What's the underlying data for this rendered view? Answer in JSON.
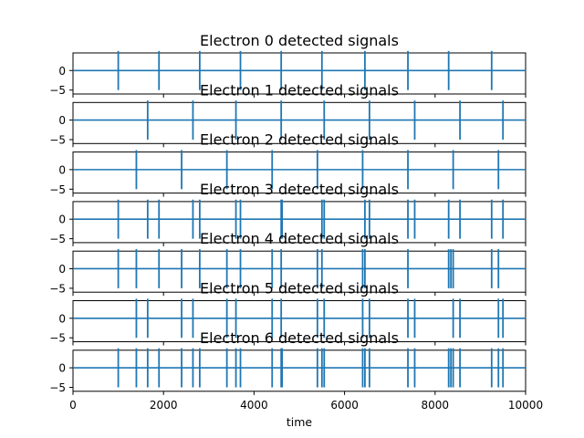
{
  "chart_data": [
    {
      "type": "line",
      "title": "Electron 0 detected signals",
      "xlim": [
        0,
        10000
      ],
      "ylim": [
        -6,
        4.5
      ],
      "yticks": [
        0,
        -5
      ],
      "x_range": [
        0,
        10000
      ],
      "baseline": 0,
      "spike_amplitude": 5,
      "spikes": [
        1000,
        1900,
        2800,
        3700,
        4600,
        5500,
        6450,
        7400,
        8300,
        9250
      ]
    },
    {
      "type": "line",
      "title": "Electron 1 detected signals",
      "xlim": [
        0,
        10000
      ],
      "ylim": [
        -6,
        4.5
      ],
      "yticks": [
        0,
        -5
      ],
      "x_range": [
        0,
        10000
      ],
      "baseline": 0,
      "spike_amplitude": 5,
      "spikes": [
        1650,
        2650,
        3600,
        4600,
        5550,
        6550,
        7550,
        8550,
        9500
      ]
    },
    {
      "type": "line",
      "title": "Electron 2 detected signals",
      "xlim": [
        0,
        10000
      ],
      "ylim": [
        -6,
        4.5
      ],
      "yticks": [
        0,
        -5
      ],
      "x_range": [
        0,
        10000
      ],
      "baseline": 0,
      "spike_amplitude": 5,
      "spikes": [
        1400,
        2400,
        3400,
        4400,
        5400,
        6400,
        7400,
        8400,
        9400
      ]
    },
    {
      "type": "line",
      "title": "Electron 3 detected signals",
      "xlim": [
        0,
        10000
      ],
      "ylim": [
        -6,
        4.5
      ],
      "yticks": [
        0,
        -5
      ],
      "x_range": [
        0,
        10000
      ],
      "baseline": 0,
      "spike_amplitude": 5,
      "spikes": [
        1000,
        1650,
        1900,
        2650,
        2800,
        3600,
        3700,
        4600,
        4620,
        5500,
        5550,
        6450,
        6550,
        7400,
        7550,
        8300,
        8550,
        9250,
        9500
      ]
    },
    {
      "type": "line",
      "title": "Electron 4 detected signals",
      "xlim": [
        0,
        10000
      ],
      "ylim": [
        -6,
        4.5
      ],
      "yticks": [
        0,
        -5
      ],
      "x_range": [
        0,
        10000
      ],
      "baseline": 0,
      "spike_amplitude": 5,
      "spikes": [
        1000,
        1400,
        1900,
        2400,
        2800,
        3400,
        3700,
        4400,
        4600,
        5400,
        5500,
        6400,
        6450,
        7400,
        8300,
        8350,
        8400,
        9250,
        9400
      ]
    },
    {
      "type": "line",
      "title": "Electron 5 detected signals",
      "xlim": [
        0,
        10000
      ],
      "ylim": [
        -6,
        4.5
      ],
      "yticks": [
        0,
        -5
      ],
      "x_range": [
        0,
        10000
      ],
      "baseline": 0,
      "spike_amplitude": 5,
      "spikes": [
        1400,
        1650,
        2400,
        2650,
        3400,
        3600,
        4400,
        4600,
        5400,
        5550,
        6400,
        6550,
        7400,
        7550,
        8400,
        8550,
        9400,
        9500
      ]
    },
    {
      "type": "line",
      "title": "Electron 6 detected signals",
      "xlim": [
        0,
        10000
      ],
      "ylim": [
        -6,
        4.5
      ],
      "yticks": [
        0,
        -5
      ],
      "x_range": [
        0,
        10000
      ],
      "baseline": 0,
      "spike_amplitude": 5,
      "spikes": [
        1000,
        1400,
        1650,
        1900,
        2400,
        2650,
        2800,
        3400,
        3600,
        3700,
        4400,
        4600,
        4620,
        5400,
        5500,
        5550,
        6400,
        6450,
        6550,
        7400,
        7550,
        8300,
        8350,
        8400,
        8550,
        9250,
        9400,
        9500
      ]
    }
  ],
  "shared_x_axis": {
    "label": "time",
    "ticks": [
      0,
      2000,
      4000,
      6000,
      8000,
      10000
    ]
  }
}
